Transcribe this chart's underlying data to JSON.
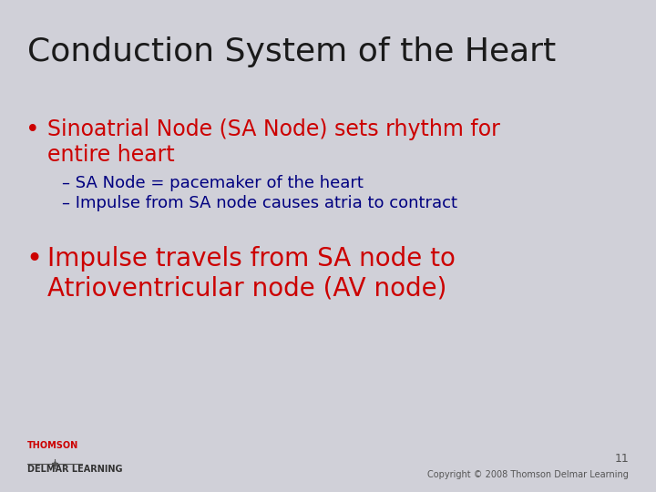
{
  "title": "Conduction System of the Heart",
  "title_color": "#1a1a1a",
  "title_fontsize": 26,
  "background_color": "#d0d0d8",
  "bullet1_text_line1": "Sinoatrial Node (SA Node) sets rhythm for",
  "bullet1_text_line2": "entire heart",
  "bullet1_color": "#cc0000",
  "bullet1_fontsize": 17,
  "sub1_text": "– SA Node = pacemaker of the heart",
  "sub2_text": "– Impulse from SA node causes atria to contract",
  "sub_color": "#000080",
  "sub_fontsize": 13,
  "bullet2_text_line1": "Impulse travels from SA node to",
  "bullet2_text_line2": "Atrioventricular node (AV node)",
  "bullet2_color": "#cc0000",
  "bullet2_fontsize": 20,
  "page_number": "11",
  "copyright_text": "Copyright © 2008 Thomson Delmar Learning",
  "footer_color": "#555555",
  "footer_fontsize": 7,
  "logo_text_top": "THOMSON",
  "logo_text_bottom": "DELMAR LEARNING",
  "logo_fontsize": 7
}
